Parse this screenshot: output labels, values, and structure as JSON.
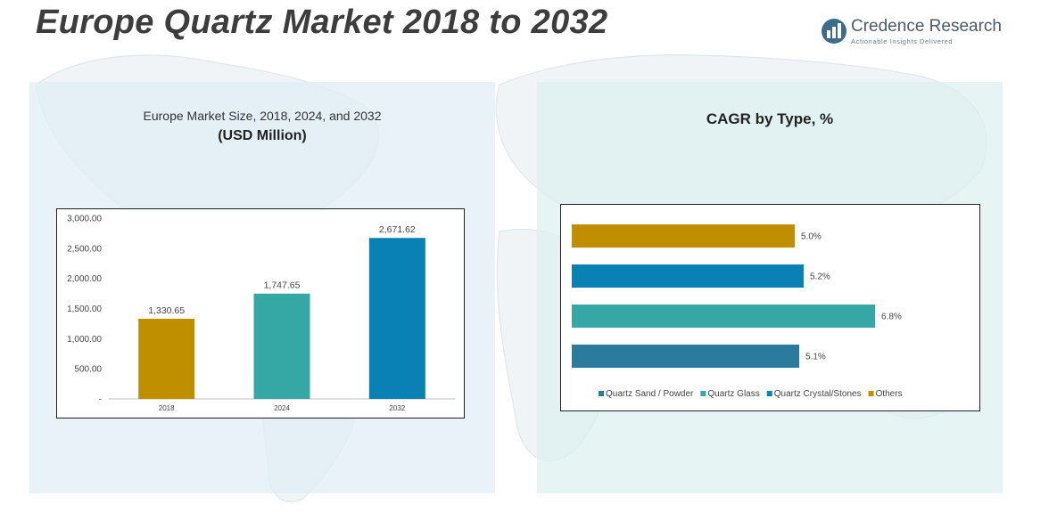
{
  "header": {
    "title": "Europe Quartz Market 2018 to 2032"
  },
  "logo": {
    "name": "Credence Research",
    "tagline": "Actionable Insights Delivered",
    "icon": "bar-chart-logo-icon"
  },
  "left_panel": {
    "title_line1": "Europe Market Size, 2018, 2024, and 2032",
    "title_line2": "(USD Million)"
  },
  "right_panel": {
    "title": "CAGR by Type, %"
  },
  "colors": {
    "gold": "#bf8f00",
    "teal": "#35a8a6",
    "blue": "#0a81b5",
    "steel": "#2b7b9f"
  },
  "chart_data": [
    {
      "type": "bar",
      "categories": [
        "2018",
        "2024",
        "2032"
      ],
      "values": [
        1330.65,
        1747.65,
        2671.62
      ],
      "data_labels": [
        "1,330.65",
        "1,747.65",
        "2,671.62"
      ],
      "colors": [
        "#bf8f00",
        "#35a8a6",
        "#0a81b5"
      ],
      "ylim": [
        0,
        3000
      ],
      "yticks": [
        0,
        500,
        1000,
        1500,
        2000,
        2500,
        3000
      ],
      "ytick_labels": [
        "-",
        "500.00",
        "1,000.00",
        "1,500.00",
        "2,000.00",
        "2,500.00",
        "3,000.00"
      ],
      "grid": false,
      "legend": "none"
    },
    {
      "type": "bar",
      "orientation": "horizontal",
      "categories": [
        "Quartz Sand / Powder",
        "Quartz Glass",
        "Quartz Crystal/Stones",
        "Others"
      ],
      "values": [
        5.1,
        6.8,
        5.2,
        5.0
      ],
      "data_labels": [
        "5.1%",
        "6.8%",
        "5.2%",
        "5.0%"
      ],
      "colors": [
        "#2b7b9f",
        "#35a8a6",
        "#0a81b5",
        "#bf8f00"
      ],
      "xlim": [
        0,
        8
      ],
      "axes_visible": false,
      "grid": false,
      "legend": "bottom"
    }
  ]
}
